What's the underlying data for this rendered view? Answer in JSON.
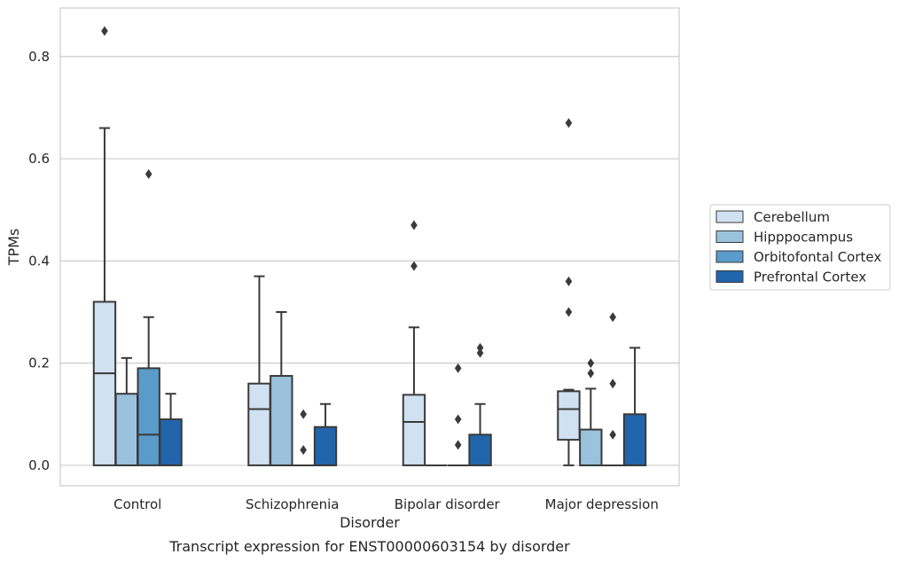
{
  "chart_data": {
    "type": "box",
    "xlabel": "Disorder",
    "ylabel": "TPMs",
    "caption": "Transcript expression for ENST00000603154 by disorder",
    "categories": [
      "Control",
      "Schizophrenia",
      "Bipolar disorder",
      "Major depression"
    ],
    "ylim": [
      -0.04,
      0.895
    ],
    "yticks": [
      0.0,
      0.2,
      0.4,
      0.6,
      0.8
    ],
    "ytick_labels": [
      "0.0",
      "0.2",
      "0.4",
      "0.6",
      "0.8"
    ],
    "grid": "horizontal",
    "legend_position": "right",
    "series": [
      {
        "name": "Cerebellum",
        "color": "#d0e1f2",
        "boxes": [
          {
            "q1": 0.0,
            "median": 0.18,
            "q3": 0.32,
            "whislo": 0.0,
            "whishi": 0.66,
            "fliers": [
              0.85
            ]
          },
          {
            "q1": 0.0,
            "median": 0.11,
            "q3": 0.16,
            "whislo": 0.0,
            "whishi": 0.37,
            "fliers": []
          },
          {
            "q1": 0.0,
            "median": 0.085,
            "q3": 0.138,
            "whislo": 0.0,
            "whishi": 0.27,
            "fliers": [
              0.39,
              0.47
            ]
          },
          {
            "q1": 0.05,
            "median": 0.11,
            "q3": 0.145,
            "whislo": 0.0,
            "whishi": 0.148,
            "fliers": [
              0.3,
              0.36,
              0.67
            ]
          }
        ]
      },
      {
        "name": "Hipppocampus",
        "color": "#9ac2dc",
        "boxes": [
          {
            "q1": 0.0,
            "median": 0.0,
            "q3": 0.14,
            "whislo": 0.0,
            "whishi": 0.21,
            "fliers": []
          },
          {
            "q1": 0.0,
            "median": 0.0,
            "q3": 0.175,
            "whislo": 0.0,
            "whishi": 0.3,
            "fliers": []
          },
          {
            "q1": 0.0,
            "median": 0.0,
            "q3": 0.0,
            "whislo": 0.0,
            "whishi": 0.0,
            "fliers": []
          },
          {
            "q1": 0.0,
            "median": 0.0,
            "q3": 0.07,
            "whislo": 0.0,
            "whishi": 0.15,
            "fliers": [
              0.18,
              0.2
            ]
          }
        ]
      },
      {
        "name": "Orbitofontal Cortex",
        "color": "#5a9bc9",
        "boxes": [
          {
            "q1": 0.0,
            "median": 0.06,
            "q3": 0.19,
            "whislo": 0.0,
            "whishi": 0.29,
            "fliers": [
              0.57
            ]
          },
          {
            "q1": 0.0,
            "median": 0.0,
            "q3": 0.0,
            "whislo": 0.0,
            "whishi": 0.0,
            "fliers": [
              0.03,
              0.1
            ]
          },
          {
            "q1": 0.0,
            "median": 0.0,
            "q3": 0.0,
            "whislo": 0.0,
            "whishi": 0.0,
            "fliers": [
              0.04,
              0.09,
              0.19
            ]
          },
          {
            "q1": 0.0,
            "median": 0.0,
            "q3": 0.0,
            "whislo": 0.0,
            "whishi": 0.0,
            "fliers": [
              0.06,
              0.16,
              0.29
            ]
          }
        ]
      },
      {
        "name": "Prefrontal Cortex",
        "color": "#2166ac",
        "boxes": [
          {
            "q1": 0.0,
            "median": 0.0,
            "q3": 0.09,
            "whislo": 0.0,
            "whishi": 0.14,
            "fliers": []
          },
          {
            "q1": 0.0,
            "median": 0.0,
            "q3": 0.075,
            "whislo": 0.0,
            "whishi": 0.12,
            "fliers": []
          },
          {
            "q1": 0.0,
            "median": 0.0,
            "q3": 0.06,
            "whislo": 0.0,
            "whishi": 0.12,
            "fliers": [
              0.22,
              0.23
            ]
          },
          {
            "q1": 0.0,
            "median": 0.0,
            "q3": 0.1,
            "whislo": 0.0,
            "whishi": 0.23,
            "fliers": []
          }
        ]
      }
    ]
  }
}
